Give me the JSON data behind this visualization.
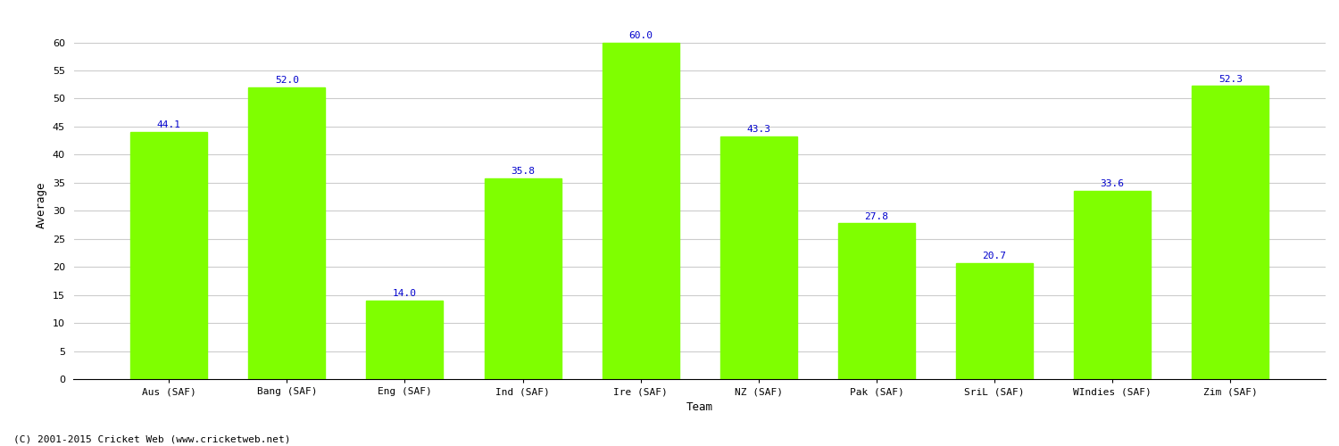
{
  "xlabel": "Team",
  "ylabel": "Average",
  "categories": [
    "Aus (SAF)",
    "Bang (SAF)",
    "Eng (SAF)",
    "Ind (SAF)",
    "Ire (SAF)",
    "NZ (SAF)",
    "Pak (SAF)",
    "SriL (SAF)",
    "WIndies (SAF)",
    "Zim (SAF)"
  ],
  "values": [
    44.1,
    52.0,
    14.0,
    35.8,
    60.0,
    43.3,
    27.8,
    20.7,
    33.6,
    52.3
  ],
  "bar_color": "#7FFF00",
  "bar_edge_color": "#7FFF00",
  "label_color": "#0000CC",
  "ylim": [
    0,
    62
  ],
  "yticks": [
    0,
    5,
    10,
    15,
    20,
    25,
    30,
    35,
    40,
    45,
    50,
    55,
    60
  ],
  "grid_color": "#cccccc",
  "background_color": "#ffffff",
  "title_fontsize": 11,
  "axis_label_fontsize": 9,
  "tick_label_fontsize": 8,
  "value_label_fontsize": 8,
  "footer_text": "(C) 2001-2015 Cricket Web (www.cricketweb.net)",
  "footer_fontsize": 8
}
